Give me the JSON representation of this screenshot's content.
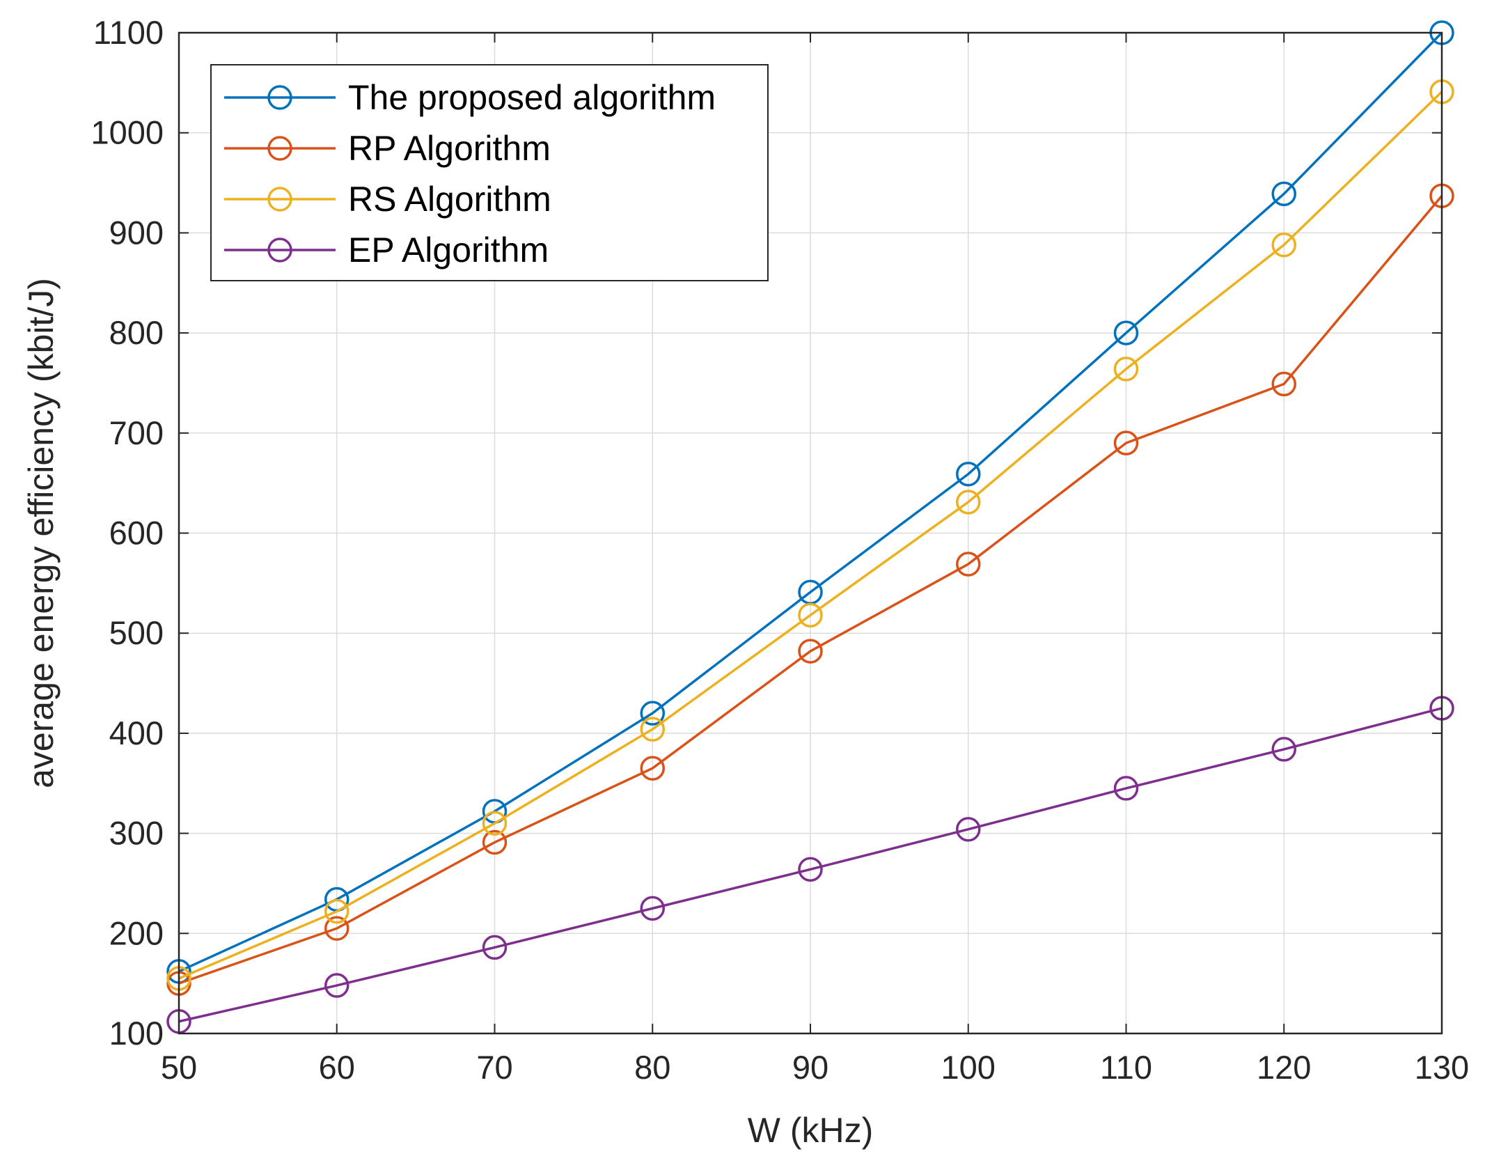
{
  "chart_data": {
    "type": "line",
    "title": "",
    "xlabel": "W (kHz)",
    "ylabel": "average energy efficiency (kbit/J)",
    "x": [
      50,
      60,
      70,
      80,
      90,
      100,
      110,
      120,
      130
    ],
    "xlim": [
      50,
      130
    ],
    "ylim": [
      100,
      1100
    ],
    "xticks": [
      50,
      60,
      70,
      80,
      90,
      100,
      110,
      120,
      130
    ],
    "yticks": [
      100,
      200,
      300,
      400,
      500,
      600,
      700,
      800,
      900,
      1000,
      1100
    ],
    "grid": true,
    "legend_position": "top-left",
    "marker": "circle",
    "series": [
      {
        "name": "The proposed algorithm",
        "color": "#0072BD",
        "values": [
          162,
          234,
          322,
          420,
          541,
          659,
          800,
          939,
          1100
        ]
      },
      {
        "name": "RP Algorithm",
        "color": "#D95319",
        "values": [
          150,
          205,
          291,
          365,
          482,
          569,
          690,
          749,
          937
        ]
      },
      {
        "name": "RS Algorithm",
        "color": "#EDB120",
        "values": [
          155,
          222,
          310,
          404,
          518,
          631,
          764,
          888,
          1041
        ]
      },
      {
        "name": "EP Algorithm",
        "color": "#7E2F8E",
        "values": [
          112,
          148,
          186,
          225,
          264,
          304,
          345,
          384,
          425
        ]
      }
    ]
  }
}
